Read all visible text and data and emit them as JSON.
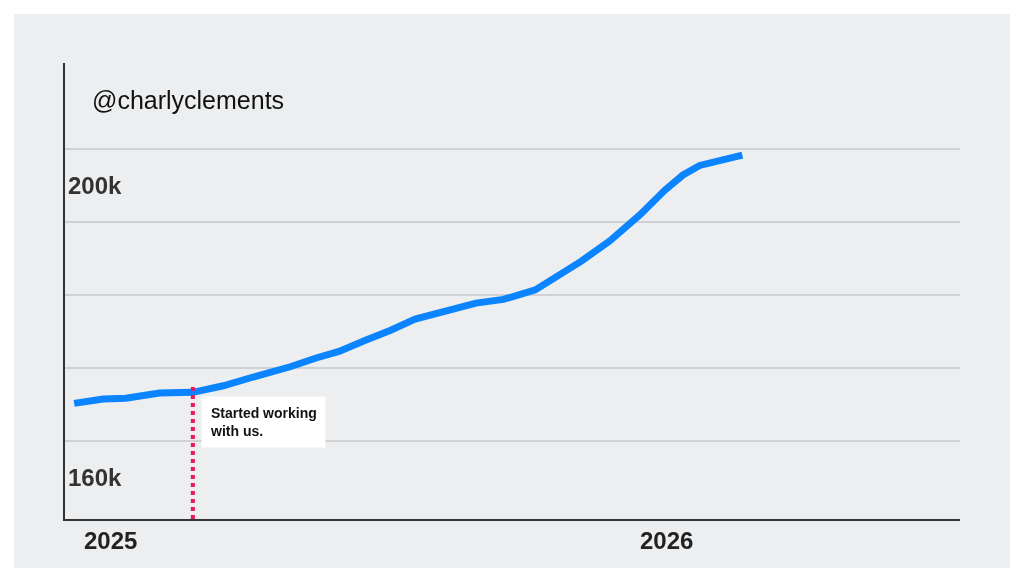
{
  "chart_data": {
    "type": "line",
    "title": "@charlyclements",
    "x": [
      "2024-12-08",
      "2024-12-27",
      "2025-01-11",
      "2025-02-02",
      "2025-02-24",
      "2025-03-16",
      "2025-04-03",
      "2025-04-29",
      "2025-05-16",
      "2025-05-31",
      "2025-06-17",
      "2025-07-04",
      "2025-07-20",
      "2025-08-09",
      "2025-08-29",
      "2025-09-16",
      "2025-10-07",
      "2025-11-06",
      "2025-11-25",
      "2025-12-15",
      "2025-12-31",
      "2026-01-12",
      "2026-01-23",
      "2026-02-20"
    ],
    "series": [
      {
        "color": "#0a84ff",
        "values": [
          170.2,
          170.8,
          170.9,
          171.6,
          171.7,
          172.6,
          173.7,
          175.2,
          176.4,
          177.3,
          178.8,
          180.2,
          181.7,
          182.8,
          183.9,
          184.4,
          185.7,
          189.6,
          192.4,
          196.0,
          199.3,
          201.4,
          202.7,
          204.1
        ]
      }
    ],
    "xlim": [
      "2024-12-02",
      "2026-07-13"
    ],
    "xticks": [
      {
        "value": "2025-01-01",
        "label": "2025"
      },
      {
        "value": "2026-01-01",
        "label": "2026"
      }
    ],
    "ylim": [
      154.4,
      216.7
    ],
    "yticks": [
      {
        "value": 200,
        "label": "200k"
      },
      {
        "value": 160,
        "label": "160k"
      },
      {
        "value": 205,
        "label": null
      },
      {
        "value": 195,
        "label": null
      },
      {
        "value": 185,
        "label": null
      },
      {
        "value": 175,
        "label": null
      },
      {
        "value": 165,
        "label": null
      }
    ],
    "grid": "y",
    "marker": "none",
    "line_style": "solid",
    "ref_lines": [
      {
        "axis": "x",
        "value": "2025-02-24",
        "label": "Started working with us.",
        "color": "#f0145a",
        "line_style": "dotted"
      }
    ]
  }
}
